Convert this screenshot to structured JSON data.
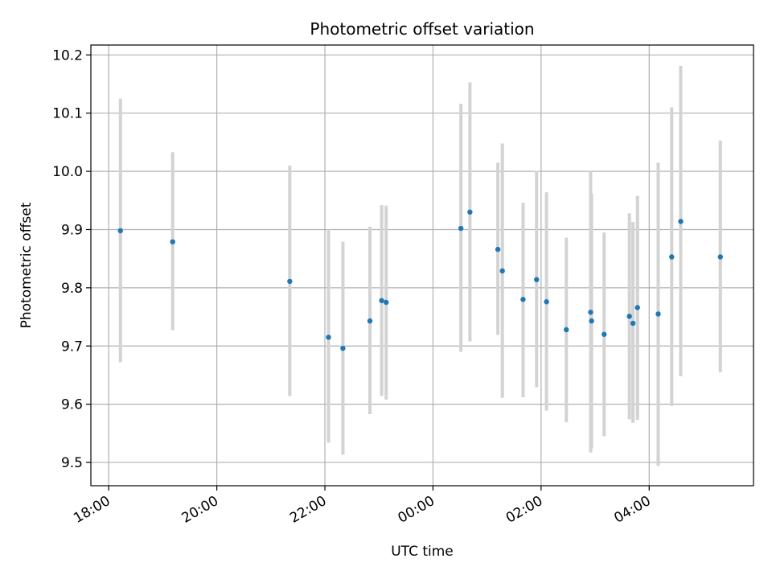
{
  "chart_data": {
    "type": "scatter",
    "title": "Photometric offset variation",
    "xlabel": "UTC time",
    "ylabel": "Photometric offset",
    "x_ticks": [
      "18:00",
      "20:00",
      "22:00",
      "00:00",
      "02:00",
      "04:00"
    ],
    "x_tick_hours": [
      18,
      20,
      22,
      24,
      26,
      28
    ],
    "xlim_hours": [
      17.67,
      29.93
    ],
    "y_ticks": [
      "9.5",
      "9.6",
      "9.7",
      "9.8",
      "9.9",
      "10.0",
      "10.1",
      "10.2"
    ],
    "ylim": [
      9.46,
      10.217
    ],
    "grid": true,
    "colors": {
      "point": "#1f77b4",
      "errorbar": "#d3d3d3",
      "grid": "#b0b0b0"
    },
    "points": [
      {
        "x": "18:13",
        "y": 9.898,
        "yerr_low": 9.672,
        "yerr_high": 10.125
      },
      {
        "x": "19:11",
        "y": 9.879,
        "yerr_low": 9.727,
        "yerr_high": 10.033
      },
      {
        "x": "21:21",
        "y": 9.811,
        "yerr_low": 9.614,
        "yerr_high": 10.01
      },
      {
        "x": "22:04",
        "y": 9.715,
        "yerr_low": 9.534,
        "yerr_high": 9.9
      },
      {
        "x": "22:20",
        "y": 9.696,
        "yerr_low": 9.513,
        "yerr_high": 9.879
      },
      {
        "x": "22:50",
        "y": 9.743,
        "yerr_low": 9.583,
        "yerr_high": 9.905
      },
      {
        "x": "23:03",
        "y": 9.778,
        "yerr_low": 9.614,
        "yerr_high": 9.942
      },
      {
        "x": "23:08",
        "y": 9.775,
        "yerr_low": 9.608,
        "yerr_high": 9.941
      },
      {
        "x": "00:31",
        "y": 9.902,
        "yerr_low": 9.69,
        "yerr_high": 10.116
      },
      {
        "x": "00:41",
        "y": 9.93,
        "yerr_low": 9.708,
        "yerr_high": 10.153
      },
      {
        "x": "01:12",
        "y": 9.866,
        "yerr_low": 9.719,
        "yerr_high": 10.015
      },
      {
        "x": "01:17",
        "y": 9.829,
        "yerr_low": 9.611,
        "yerr_high": 10.048
      },
      {
        "x": "01:40",
        "y": 9.78,
        "yerr_low": 9.612,
        "yerr_high": 9.946
      },
      {
        "x": "01:55",
        "y": 9.814,
        "yerr_low": 9.629,
        "yerr_high": 10.001
      },
      {
        "x": "02:06",
        "y": 9.776,
        "yerr_low": 9.589,
        "yerr_high": 9.964
      },
      {
        "x": "02:28",
        "y": 9.728,
        "yerr_low": 9.569,
        "yerr_high": 9.886
      },
      {
        "x": "02:55",
        "y": 9.758,
        "yerr_low": 9.517,
        "yerr_high": 10.0
      },
      {
        "x": "02:56",
        "y": 9.743,
        "yerr_low": 9.524,
        "yerr_high": 9.962
      },
      {
        "x": "03:10",
        "y": 9.72,
        "yerr_low": 9.545,
        "yerr_high": 9.895
      },
      {
        "x": "03:38",
        "y": 9.751,
        "yerr_low": 9.574,
        "yerr_high": 9.928
      },
      {
        "x": "03:42",
        "y": 9.739,
        "yerr_low": 9.568,
        "yerr_high": 9.913
      },
      {
        "x": "03:47",
        "y": 9.766,
        "yerr_low": 9.573,
        "yerr_high": 9.958
      },
      {
        "x": "04:10",
        "y": 9.755,
        "yerr_low": 9.494,
        "yerr_high": 10.015
      },
      {
        "x": "04:25",
        "y": 9.853,
        "yerr_low": 9.597,
        "yerr_high": 10.11
      },
      {
        "x": "04:35",
        "y": 9.914,
        "yerr_low": 9.648,
        "yerr_high": 10.181
      },
      {
        "x": "05:19",
        "y": 9.853,
        "yerr_low": 9.655,
        "yerr_high": 10.053
      }
    ]
  }
}
